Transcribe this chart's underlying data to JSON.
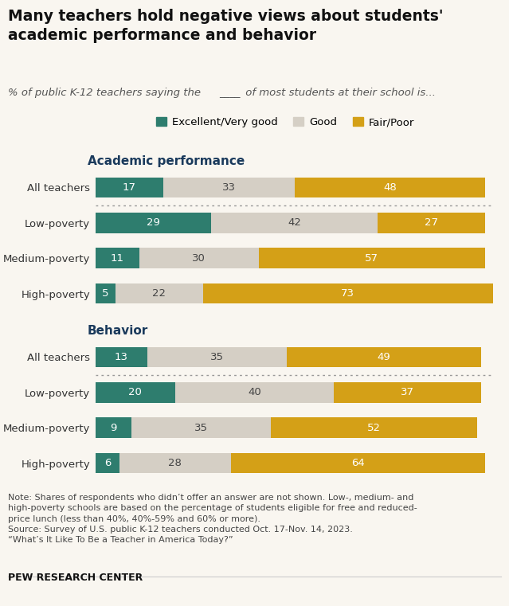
{
  "title": "Many teachers hold negative views about students'\nacademic performance and behavior",
  "subtitle_parts": [
    "% of public K-12 teachers saying the ",
    "____",
    " of most students at their school is..."
  ],
  "legend_labels": [
    "Excellent/Very good",
    "Good",
    "Fair/Poor"
  ],
  "colors": [
    "#2e7d6e",
    "#d5cfc5",
    "#d4a017"
  ],
  "section_labels": [
    "Academic performance",
    "Behavior"
  ],
  "row_labels": [
    "All teachers",
    "Low-poverty",
    "Medium-poverty",
    "High-poverty",
    "All teachers",
    "Low-poverty",
    "Medium-poverty",
    "High-poverty"
  ],
  "data": [
    [
      17,
      33,
      48
    ],
    [
      29,
      42,
      27
    ],
    [
      11,
      30,
      57
    ],
    [
      5,
      22,
      73
    ],
    [
      13,
      35,
      49
    ],
    [
      20,
      40,
      37
    ],
    [
      9,
      35,
      52
    ],
    [
      6,
      28,
      64
    ]
  ],
  "note_line1": "Note: Shares of respondents who didn’t offer an answer are not shown. Low-, medium- and",
  "note_line2": "high-poverty schools are based on the percentage of students eligible for free and reduced-",
  "note_line3": "price lunch (less than 40%, 40%-59% and 60% or more).",
  "note_line4": "Source: Survey of U.S. public K-12 teachers conducted Oct. 17-Nov. 14, 2023.",
  "note_line5": "“What’s It Like To Be a Teacher in America Today?”",
  "source_label": "PEW RESEARCH CENTER",
  "bar_height": 0.58,
  "bg_color": "#f9f6f0",
  "text_color_light": "#ffffff",
  "text_color_dark": "#444444",
  "section_color": "#1a3a5c",
  "title_color": "#111111"
}
